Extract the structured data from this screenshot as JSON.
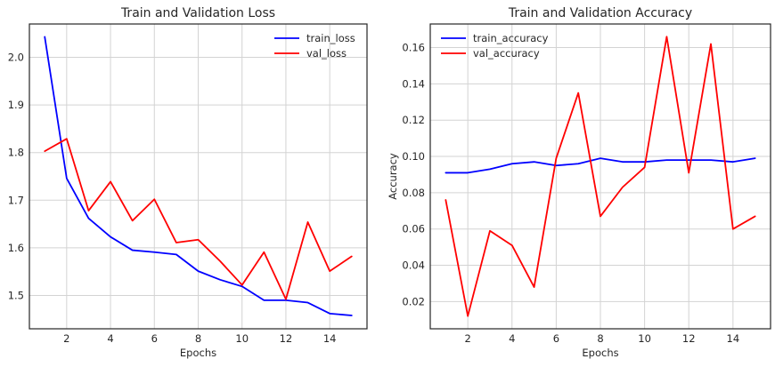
{
  "chart_data": [
    {
      "type": "line",
      "title": "Train and Validation Loss",
      "xlabel": "Epochs",
      "ylabel": "",
      "x": [
        1,
        2,
        3,
        4,
        5,
        6,
        7,
        8,
        9,
        10,
        11,
        12,
        13,
        14,
        15
      ],
      "xlim": [
        0.3,
        15.7
      ],
      "ylim": [
        1.43,
        2.07
      ],
      "xticks": [
        2,
        4,
        6,
        8,
        10,
        12,
        14
      ],
      "yticks": [
        1.5,
        1.6,
        1.7,
        1.8,
        1.9,
        2.0
      ],
      "xtick_labels": [
        "2",
        "4",
        "6",
        "8",
        "10",
        "12",
        "14"
      ],
      "ytick_labels": [
        "1.5",
        "1.6",
        "1.7",
        "1.8",
        "1.9",
        "2.0"
      ],
      "grid": true,
      "legend_position": "top-right",
      "series": [
        {
          "name": "train_loss",
          "color": "#0000ff",
          "values": [
            2.043,
            1.746,
            1.662,
            1.623,
            1.595,
            1.591,
            1.586,
            1.551,
            1.533,
            1.519,
            1.49,
            1.49,
            1.485,
            1.462,
            1.458
          ]
        },
        {
          "name": "val_loss",
          "color": "#ff0000",
          "values": [
            1.803,
            1.829,
            1.678,
            1.739,
            1.657,
            1.702,
            1.611,
            1.617,
            1.572,
            1.522,
            1.591,
            1.492,
            1.654,
            1.551,
            1.582
          ]
        }
      ]
    },
    {
      "type": "line",
      "title": "Train and Validation Accuracy",
      "xlabel": "Epochs",
      "ylabel": "Accuracy",
      "x": [
        1,
        2,
        3,
        4,
        5,
        6,
        7,
        8,
        9,
        10,
        11,
        12,
        13,
        14,
        15
      ],
      "xlim": [
        0.3,
        15.7
      ],
      "ylim": [
        0.005,
        0.173
      ],
      "xticks": [
        2,
        4,
        6,
        8,
        10,
        12,
        14
      ],
      "yticks": [
        0.02,
        0.04,
        0.06,
        0.08,
        0.1,
        0.12,
        0.14,
        0.16
      ],
      "xtick_labels": [
        "2",
        "4",
        "6",
        "8",
        "10",
        "12",
        "14"
      ],
      "ytick_labels": [
        "0.02",
        "0.04",
        "0.06",
        "0.08",
        "0.10",
        "0.12",
        "0.14",
        "0.16"
      ],
      "grid": true,
      "legend_position": "top-left",
      "series": [
        {
          "name": "train_accuracy",
          "color": "#0000ff",
          "values": [
            0.091,
            0.091,
            0.093,
            0.096,
            0.097,
            0.095,
            0.096,
            0.099,
            0.097,
            0.097,
            0.098,
            0.098,
            0.098,
            0.097,
            0.099
          ]
        },
        {
          "name": "val_accuracy",
          "color": "#ff0000",
          "values": [
            0.076,
            0.012,
            0.059,
            0.051,
            0.028,
            0.099,
            0.135,
            0.067,
            0.083,
            0.094,
            0.166,
            0.091,
            0.162,
            0.06,
            0.067
          ]
        }
      ]
    }
  ],
  "style": {
    "grid_color": "#d3d3d3",
    "frame_color": "#262626",
    "text_color": "#262626"
  }
}
